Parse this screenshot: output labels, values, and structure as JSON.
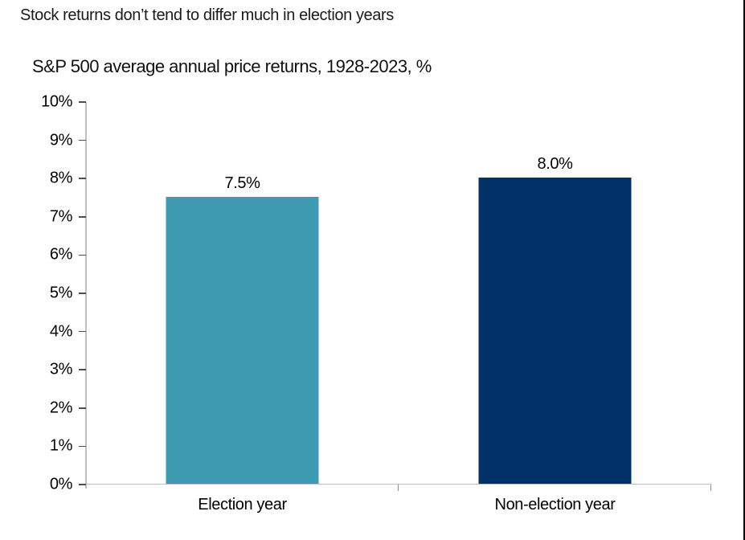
{
  "window": {
    "background": "#ffffff",
    "right_border_color": "#000000"
  },
  "chart_data": {
    "type": "bar",
    "title": "Stock returns don’t tend to differ much in election years",
    "subtitle": "S&P 500 average annual price returns, 1928-2023, %",
    "categories": [
      "Election year",
      "Non-election year"
    ],
    "values": [
      7.5,
      8.0
    ],
    "value_labels": [
      "7.5%",
      "8.0%"
    ],
    "bar_colors": [
      "#3f9bb2",
      "#003169"
    ],
    "xlabel": "",
    "ylabel": "",
    "ylim": [
      0,
      10
    ],
    "ytick_step": 1,
    "ytick_labels": [
      "0%",
      "1%",
      "2%",
      "3%",
      "4%",
      "5%",
      "6%",
      "7%",
      "8%",
      "9%",
      "10%"
    ],
    "grid": false,
    "legend": false,
    "axis_color": "#bfbfbf",
    "tick_color": "#4d4d4d",
    "bar_width_fraction": 0.2455
  }
}
